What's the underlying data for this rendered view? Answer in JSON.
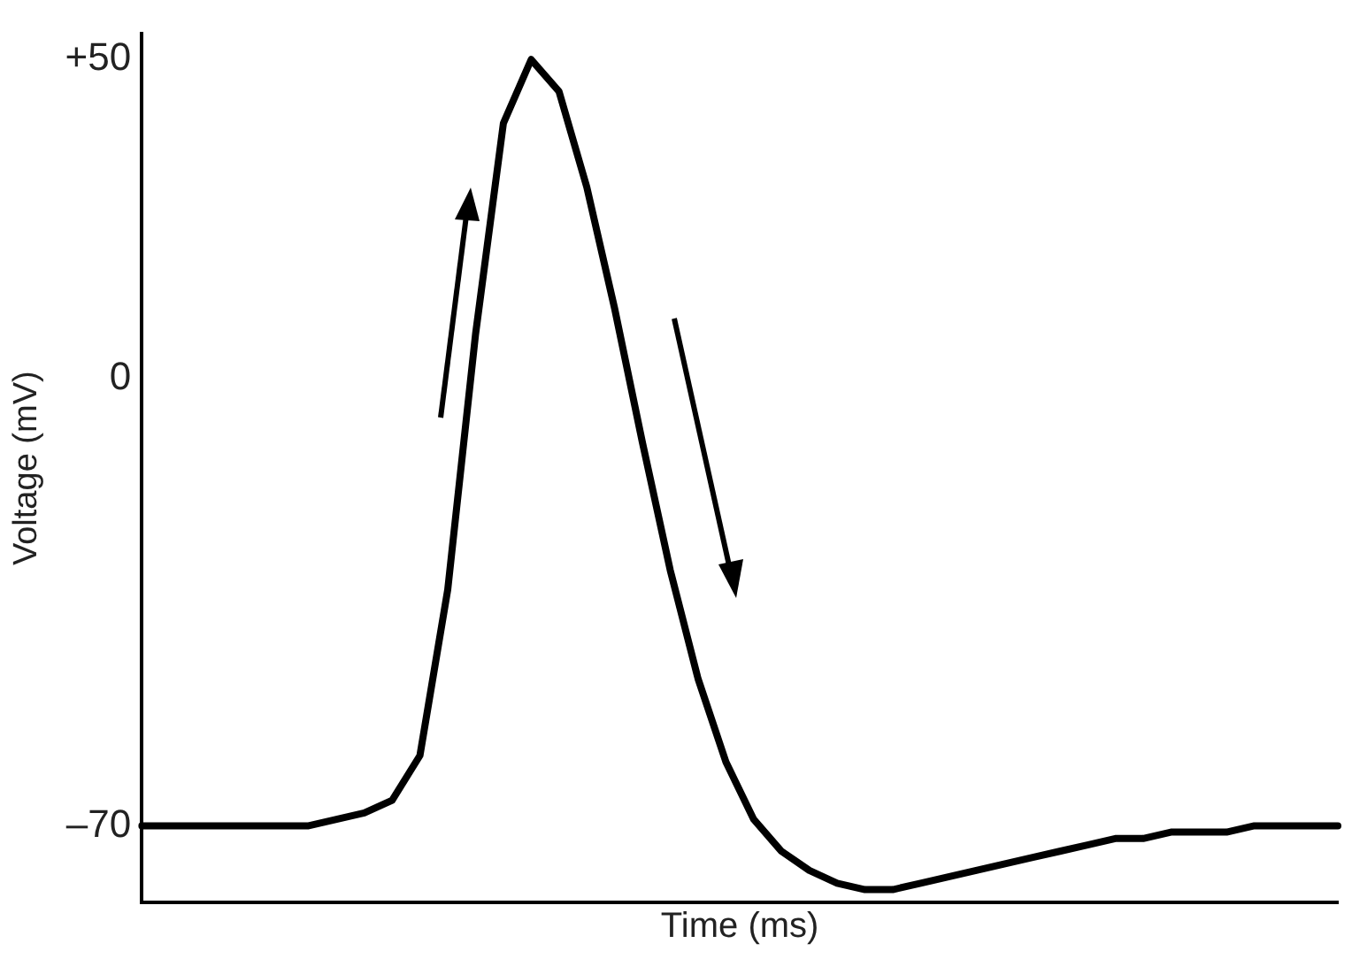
{
  "chart_data": {
    "type": "line",
    "xlabel": "Time (ms)",
    "ylabel": "Voltage (mV)",
    "categories": [
      null,
      null,
      null,
      null,
      null,
      null,
      null,
      null,
      null,
      null,
      null,
      null,
      null,
      null,
      null,
      null,
      null,
      null,
      null,
      null,
      null,
      null,
      null,
      null,
      null,
      null,
      null,
      null,
      null,
      null,
      null,
      null,
      null,
      null,
      null,
      null,
      null,
      null,
      null,
      null,
      null,
      null,
      null,
      null
    ],
    "series": [
      {
        "color": "#000000",
        "values": [
          -70,
          -70,
          -70,
          -70,
          -70,
          -70,
          -70,
          -69,
          -68,
          -66,
          -59,
          -33,
          7,
          40,
          50,
          45,
          30,
          11,
          -10,
          -30,
          -47,
          -60,
          -69,
          -74,
          -77,
          -79,
          -80,
          -80,
          -79,
          -78,
          -77,
          -76,
          -75,
          -74,
          -73,
          -72,
          -72,
          -71,
          -71,
          -71,
          -70,
          -70,
          -70,
          -70
        ]
      }
    ],
    "ylim": [
      -82,
      54
    ],
    "yticks": [
      {
        "value": 50,
        "label": "+50"
      },
      {
        "value": 0,
        "label": "0"
      },
      {
        "value": -70,
        "label": "–70"
      }
    ],
    "tick_labels": "y",
    "grid": false,
    "legend": false,
    "marker": "none",
    "line_style": "solid"
  }
}
